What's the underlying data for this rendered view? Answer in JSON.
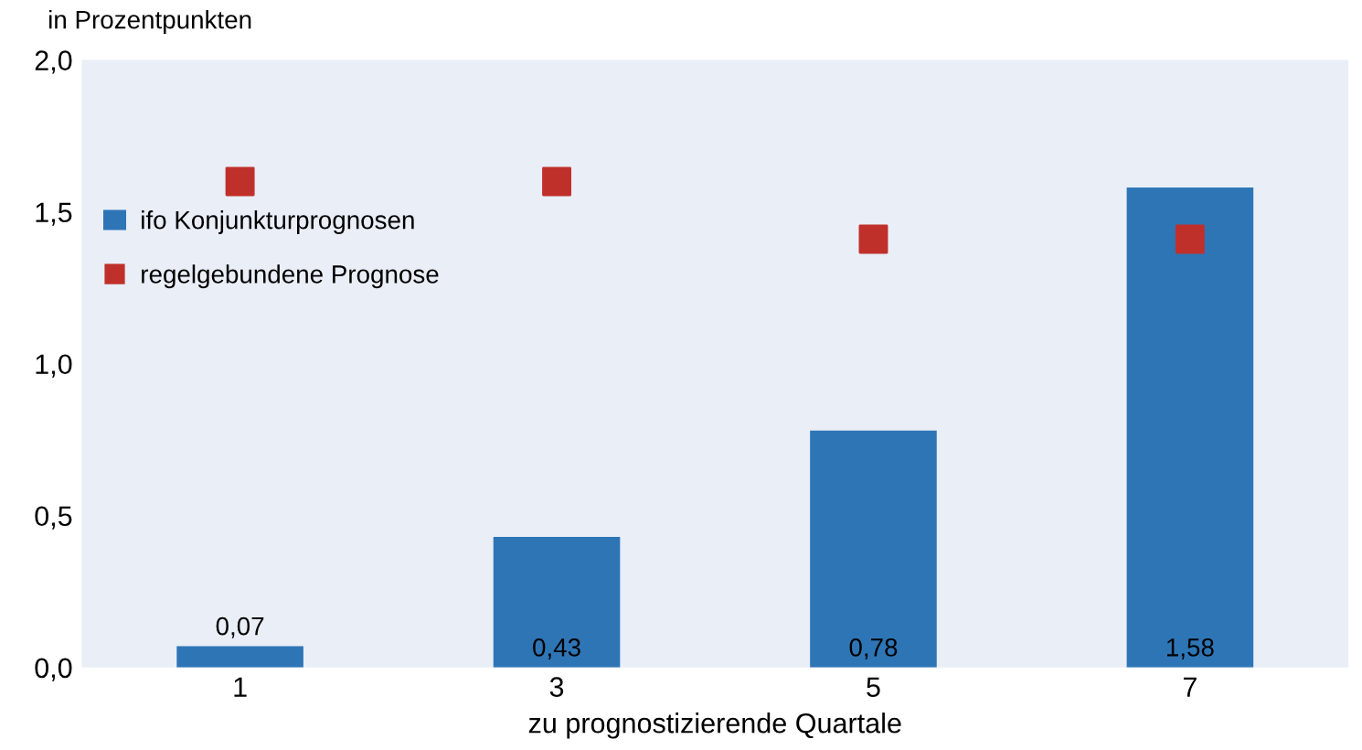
{
  "chart_data": {
    "type": "bar",
    "ylabel": "in Prozentpunkten",
    "xlabel": "zu prognostizierende Quartale",
    "categories": [
      "1",
      "3",
      "5",
      "7"
    ],
    "series": [
      {
        "name": "ifo Konjunkturprognosen",
        "color": "#2e75b6",
        "values": [
          0.07,
          0.43,
          0.78,
          1.58
        ],
        "value_labels": [
          "0,07",
          "0,43",
          "0,78",
          "1,58"
        ]
      },
      {
        "name": "regelgebundene Prognose",
        "type": "scatter",
        "color": "#c0302b",
        "x": [
          "1",
          "3",
          "5",
          "7"
        ],
        "values": [
          1.6,
          1.6,
          1.41,
          1.41
        ]
      }
    ],
    "ylim": [
      0,
      2.0
    ],
    "yticks": [
      {
        "value": 0,
        "label": "0,0"
      },
      {
        "value": 0.5,
        "label": "0,5"
      },
      {
        "value": 1.0,
        "label": "1,0"
      },
      {
        "value": 1.5,
        "label": "1,5"
      },
      {
        "value": 2.0,
        "label": "2,0"
      }
    ],
    "marker": "square",
    "legend": "upper left",
    "grid": false
  }
}
